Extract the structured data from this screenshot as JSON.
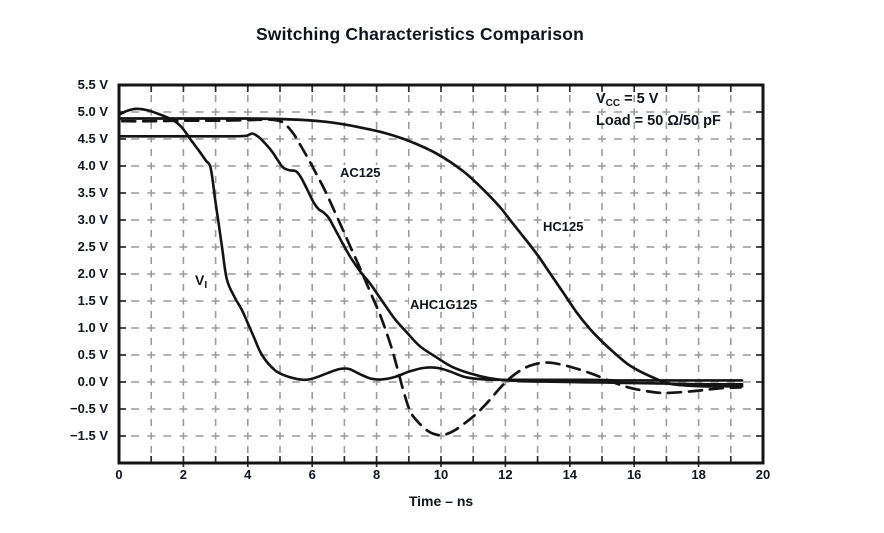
{
  "page": {
    "background": "#ffffff"
  },
  "chart_data": {
    "type": "line",
    "title": "Switching Characteristics Comparison",
    "xlabel": "Time – ns",
    "ylabel": "",
    "x_range": [
      0,
      20
    ],
    "x_major_tick_step": 2,
    "x_minor_grid_step": 1,
    "grid": "dashed-gray-both-axes",
    "legend_position": "top-right-inside",
    "colors": {
      "curve": "#141414",
      "grid": "#9c9c9c",
      "frame": "#141414",
      "text": "#10141c",
      "background": "#ffffff"
    },
    "x_axis": {
      "tick_values": [
        0,
        2,
        4,
        6,
        8,
        10,
        12,
        14,
        16,
        18,
        20
      ],
      "tick_labels": [
        "0",
        "2",
        "4",
        "6",
        "8",
        "10",
        "12",
        "14",
        "16",
        "18",
        "20"
      ]
    },
    "y_axis": {
      "unit": "V",
      "note": "broken scale: the gridline one 0.5 V step below −0.5 V is labeled −1.5 V",
      "ticks": [
        {
          "label": "5.5 V",
          "value": 5.5
        },
        {
          "label": "5.0 V",
          "value": 5.0
        },
        {
          "label": "4.5 V",
          "value": 4.5
        },
        {
          "label": "4.0 V",
          "value": 4.0
        },
        {
          "label": "3.5 V",
          "value": 3.5
        },
        {
          "label": "3.0 V",
          "value": 3.0
        },
        {
          "label": "2.5 V",
          "value": 2.5
        },
        {
          "label": "2.0 V",
          "value": 2.0
        },
        {
          "label": "1.5 V",
          "value": 1.5
        },
        {
          "label": "1.0 V",
          "value": 1.0
        },
        {
          "label": "0.5 V",
          "value": 0.5
        },
        {
          "label": "0.0 V",
          "value": 0.0
        },
        {
          "label": "−0.5 V",
          "value": -0.5
        },
        {
          "label": "−1.5 V",
          "value": -1.5
        }
      ]
    },
    "annotations": {
      "vcc_main": "V",
      "vcc_sub": "CC",
      "vcc_rest": " = 5 V",
      "load": "Load = 50 Ω/50 pF"
    },
    "curve_labels": [
      {
        "id": "ac125",
        "text": "AC125",
        "x": 339,
        "y": 165
      },
      {
        "id": "hc125",
        "text": "HC125",
        "x": 542,
        "y": 219
      },
      {
        "id": "ahc1g125",
        "text": "AHC1G125",
        "x": 409,
        "y": 297
      },
      {
        "id": "vi",
        "text": "V",
        "sub": "I",
        "x": 194,
        "y": 273
      }
    ],
    "series": [
      {
        "name": "VI",
        "style": "solid",
        "color": "#141414",
        "width": 2.6,
        "points": [
          [
            0,
            4.95
          ],
          [
            0.25,
            5.02
          ],
          [
            0.55,
            5.06
          ],
          [
            0.9,
            5.03
          ],
          [
            1.2,
            4.97
          ],
          [
            1.5,
            4.9
          ],
          [
            1.8,
            4.8
          ],
          [
            2.0,
            4.68
          ],
          [
            2.2,
            4.51
          ],
          [
            2.45,
            4.31
          ],
          [
            2.7,
            4.1
          ],
          [
            2.85,
            3.95
          ],
          [
            3.0,
            3.32
          ],
          [
            3.2,
            2.5
          ],
          [
            3.35,
            1.9
          ],
          [
            3.6,
            1.56
          ],
          [
            3.82,
            1.33
          ],
          [
            4.16,
            0.87
          ],
          [
            4.44,
            0.5
          ],
          [
            4.84,
            0.22
          ],
          [
            5.2,
            0.11
          ],
          [
            5.5,
            0.06
          ],
          [
            5.8,
            0.04
          ],
          [
            6.1,
            0.08
          ],
          [
            6.5,
            0.17
          ],
          [
            6.85,
            0.24
          ],
          [
            7.15,
            0.24
          ],
          [
            7.5,
            0.14
          ],
          [
            7.85,
            0.06
          ],
          [
            8.2,
            0.05
          ],
          [
            8.6,
            0.1
          ],
          [
            9.0,
            0.19
          ],
          [
            9.45,
            0.26
          ],
          [
            9.9,
            0.26
          ],
          [
            10.3,
            0.19
          ],
          [
            10.7,
            0.1
          ],
          [
            11.1,
            0.06
          ],
          [
            11.7,
            0.04
          ],
          [
            12.5,
            0.04
          ],
          [
            13.5,
            0.04
          ],
          [
            14.5,
            0.04
          ],
          [
            15.5,
            0.03
          ],
          [
            16.5,
            0.03
          ],
          [
            17.5,
            0.03
          ],
          [
            18.5,
            0.03
          ],
          [
            19.35,
            0.03
          ]
        ]
      },
      {
        "name": "HC125",
        "style": "solid",
        "color": "#141414",
        "width": 2.7,
        "points": [
          [
            0,
            4.88
          ],
          [
            1,
            4.88
          ],
          [
            2,
            4.88
          ],
          [
            3,
            4.88
          ],
          [
            4,
            4.88
          ],
          [
            5,
            4.87
          ],
          [
            5.8,
            4.85
          ],
          [
            6.4,
            4.82
          ],
          [
            7.0,
            4.77
          ],
          [
            7.6,
            4.7
          ],
          [
            8.2,
            4.62
          ],
          [
            8.8,
            4.51
          ],
          [
            9.3,
            4.39
          ],
          [
            9.8,
            4.25
          ],
          [
            10.3,
            4.07
          ],
          [
            10.8,
            3.85
          ],
          [
            11.3,
            3.57
          ],
          [
            11.8,
            3.26
          ],
          [
            12.2,
            2.96
          ],
          [
            12.6,
            2.66
          ],
          [
            13.0,
            2.35
          ],
          [
            13.4,
            2.0
          ],
          [
            13.8,
            1.65
          ],
          [
            14.2,
            1.3
          ],
          [
            14.6,
            1.0
          ],
          [
            15.0,
            0.75
          ],
          [
            15.4,
            0.53
          ],
          [
            15.8,
            0.33
          ],
          [
            16.2,
            0.19
          ],
          [
            16.6,
            0.08
          ],
          [
            17.0,
            -0.02
          ],
          [
            17.5,
            -0.06
          ],
          [
            18.1,
            -0.08
          ],
          [
            18.8,
            -0.08
          ],
          [
            19.35,
            -0.08
          ]
        ]
      },
      {
        "name": "AHC1G125",
        "style": "solid",
        "color": "#141414",
        "width": 2.6,
        "points": [
          [
            0,
            4.55
          ],
          [
            1,
            4.55
          ],
          [
            2,
            4.55
          ],
          [
            3,
            4.55
          ],
          [
            3.6,
            4.55
          ],
          [
            3.95,
            4.56
          ],
          [
            4.15,
            4.6
          ],
          [
            4.35,
            4.53
          ],
          [
            4.55,
            4.41
          ],
          [
            4.75,
            4.27
          ],
          [
            4.95,
            4.09
          ],
          [
            5.1,
            3.97
          ],
          [
            5.3,
            3.92
          ],
          [
            5.5,
            3.9
          ],
          [
            5.65,
            3.79
          ],
          [
            5.85,
            3.56
          ],
          [
            6.05,
            3.32
          ],
          [
            6.2,
            3.2
          ],
          [
            6.35,
            3.14
          ],
          [
            6.5,
            3.05
          ],
          [
            6.7,
            2.84
          ],
          [
            6.95,
            2.56
          ],
          [
            7.2,
            2.3
          ],
          [
            7.5,
            2.04
          ],
          [
            7.8,
            1.82
          ],
          [
            8.15,
            1.52
          ],
          [
            8.55,
            1.18
          ],
          [
            8.95,
            0.91
          ],
          [
            9.35,
            0.66
          ],
          [
            9.85,
            0.46
          ],
          [
            10.35,
            0.28
          ],
          [
            10.9,
            0.16
          ],
          [
            11.5,
            0.07
          ],
          [
            12.1,
            0.03
          ],
          [
            12.9,
            0.01
          ],
          [
            13.9,
            0
          ],
          [
            15,
            -0.01
          ],
          [
            16,
            -0.02
          ],
          [
            17,
            -0.03
          ],
          [
            18,
            -0.04
          ],
          [
            19.35,
            -0.04
          ]
        ]
      },
      {
        "name": "AC125",
        "style": "dashed",
        "color": "#141414",
        "width": 2.7,
        "points": [
          [
            0.1,
            4.83
          ],
          [
            1,
            4.83
          ],
          [
            2,
            4.84
          ],
          [
            3,
            4.84
          ],
          [
            4,
            4.85
          ],
          [
            4.7,
            4.86
          ],
          [
            5.05,
            4.82
          ],
          [
            5.25,
            4.72
          ],
          [
            5.45,
            4.57
          ],
          [
            5.65,
            4.37
          ],
          [
            5.9,
            4.11
          ],
          [
            6.15,
            3.83
          ],
          [
            6.4,
            3.54
          ],
          [
            6.65,
            3.22
          ],
          [
            6.95,
            2.82
          ],
          [
            7.25,
            2.42
          ],
          [
            7.55,
            2.02
          ],
          [
            7.85,
            1.6
          ],
          [
            8.15,
            1.18
          ],
          [
            8.45,
            0.66
          ],
          [
            8.65,
            0.24
          ],
          [
            8.85,
            -0.2
          ],
          [
            9.05,
            -0.6
          ],
          [
            9.3,
            -1.0
          ],
          [
            9.6,
            -1.32
          ],
          [
            9.9,
            -1.46
          ],
          [
            10.15,
            -1.44
          ],
          [
            10.45,
            -1.27
          ],
          [
            10.8,
            -0.97
          ],
          [
            11.15,
            -0.62
          ],
          [
            11.5,
            -0.34
          ],
          [
            11.85,
            -0.1
          ],
          [
            12.2,
            0.1
          ],
          [
            12.6,
            0.26
          ],
          [
            13.0,
            0.34
          ],
          [
            13.35,
            0.36
          ],
          [
            13.75,
            0.32
          ],
          [
            14.2,
            0.25
          ],
          [
            14.7,
            0.15
          ],
          [
            15.2,
            0.03
          ],
          [
            15.7,
            -0.08
          ],
          [
            16.2,
            -0.15
          ],
          [
            16.8,
            -0.2
          ],
          [
            17.4,
            -0.19
          ],
          [
            18.0,
            -0.16
          ],
          [
            18.6,
            -0.12
          ],
          [
            19.3,
            -0.1
          ]
        ]
      }
    ]
  }
}
